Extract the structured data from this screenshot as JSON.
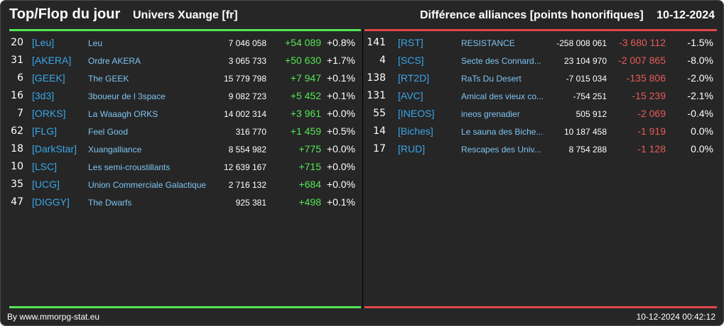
{
  "header": {
    "title": "Top/Flop du jour",
    "universe": "Univers Xuange [fr]",
    "category": "Différence alliances [points honorifiques]",
    "date": "10-12-2024"
  },
  "colors": {
    "up": "#55e655",
    "down": "#e04848",
    "tag": "#3aa6e8",
    "name": "#7ec4f2",
    "background": "#262626"
  },
  "top": [
    {
      "rank": "20",
      "tag": "[Leu]",
      "name": "Leu",
      "points": "7 046 058",
      "diff": "+54 089",
      "pct": "+0.8%"
    },
    {
      "rank": "31",
      "tag": "[AKERA]",
      "name": "Ordre AKERA",
      "points": "3 065 733",
      "diff": "+50 630",
      "pct": "+1.7%"
    },
    {
      "rank": "6",
      "tag": "[GEEK]",
      "name": "The GEEK",
      "points": "15 779 798",
      "diff": "+7 947",
      "pct": "+0.1%"
    },
    {
      "rank": "16",
      "tag": "[3d3]",
      "name": "3boueur de l 3space",
      "points": "9 082 723",
      "diff": "+5 452",
      "pct": "+0.1%"
    },
    {
      "rank": "7",
      "tag": "[ORKS]",
      "name": "La Waaagh ORKS",
      "points": "14 002 314",
      "diff": "+3 961",
      "pct": "+0.0%"
    },
    {
      "rank": "62",
      "tag": "[FLG]",
      "name": "Feel Good",
      "points": "316 770",
      "diff": "+1 459",
      "pct": "+0.5%"
    },
    {
      "rank": "18",
      "tag": "[DarkStar]",
      "name": "Xuangalliance",
      "points": "8 554 982",
      "diff": "+775",
      "pct": "+0.0%"
    },
    {
      "rank": "10",
      "tag": "[LSC]",
      "name": "Les semi-croustillants",
      "points": "12 639 167",
      "diff": "+715",
      "pct": "+0.0%"
    },
    {
      "rank": "35",
      "tag": "[UCG]",
      "name": "Union Commerciale Galactique",
      "points": "2 716 132",
      "diff": "+684",
      "pct": "+0.0%"
    },
    {
      "rank": "47",
      "tag": "[DIGGY]",
      "name": "The Dwarfs",
      "points": "925 381",
      "diff": "+498",
      "pct": "+0.1%"
    }
  ],
  "flop": [
    {
      "rank": "141",
      "tag": "[RST]",
      "name": "RESISTANCE",
      "points": "-258 008 061",
      "diff": "-3 680 112",
      "pct": "-1.5%"
    },
    {
      "rank": "4",
      "tag": "[SCS]",
      "name": "Secte des Connard...",
      "points": "23 104 970",
      "diff": "-2 007 865",
      "pct": "-8.0%"
    },
    {
      "rank": "138",
      "tag": "[RT2D]",
      "name": "RaTs Du Desert",
      "points": "-7 015 034",
      "diff": "-135 806",
      "pct": "-2.0%"
    },
    {
      "rank": "131",
      "tag": "[AVC]",
      "name": "Amical des vieux co...",
      "points": "-754 251",
      "diff": "-15 239",
      "pct": "-2.1%"
    },
    {
      "rank": "55",
      "tag": "[INEOS]",
      "name": "ineos grenadier",
      "points": "505 912",
      "diff": "-2 069",
      "pct": "-0.4%"
    },
    {
      "rank": "14",
      "tag": "[Biches]",
      "name": "Le sauna des Biche...",
      "points": "10 187 458",
      "diff": "-1 919",
      "pct": "0.0%"
    },
    {
      "rank": "17",
      "tag": "[RUD]",
      "name": "Rescapes des Univ...",
      "points": "8 754 288",
      "diff": "-1 128",
      "pct": "0.0%"
    }
  ],
  "footer": {
    "source": "By www.mmorpg-stat.eu",
    "timestamp": "10-12-2024 00:42:12"
  }
}
